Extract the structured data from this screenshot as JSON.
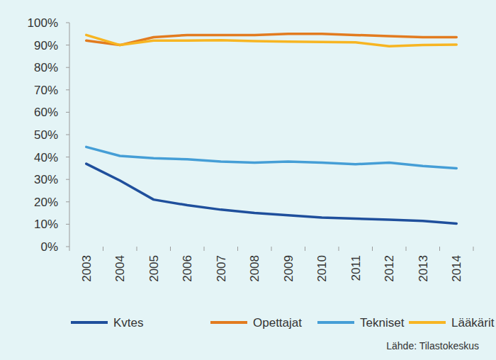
{
  "chart_data": {
    "type": "line",
    "categories": [
      "2003",
      "2004",
      "2005",
      "2006",
      "2007",
      "2008",
      "2009",
      "2010",
      "2011",
      "2012",
      "2013",
      "2014"
    ],
    "series": [
      {
        "name": "Kvtes",
        "color": "#1f4f9c",
        "values": [
          37,
          29.5,
          21,
          18.5,
          16.5,
          15,
          14,
          13,
          12.5,
          12,
          11.5,
          10.3
        ]
      },
      {
        "name": "Opettajat",
        "color": "#e27b1f",
        "values": [
          92,
          90,
          93.5,
          94.5,
          94.5,
          94.5,
          95,
          95,
          94.5,
          94,
          93.5,
          93.5
        ]
      },
      {
        "name": "Tekniset",
        "color": "#459ed6",
        "values": [
          44.5,
          40.5,
          39.5,
          39,
          38,
          37.5,
          38,
          37.5,
          36.8,
          37.5,
          36,
          35
        ]
      },
      {
        "name": "Lääkärit",
        "color": "#f7b522",
        "values": [
          94.5,
          90,
          92,
          92,
          92.2,
          91.8,
          91.5,
          91.4,
          91.2,
          89.5,
          90,
          90.2
        ]
      }
    ],
    "ylim": [
      0,
      100
    ],
    "yticks": [
      {
        "value": 0,
        "label": "0%"
      },
      {
        "value": 10,
        "label": "10%"
      },
      {
        "value": 20,
        "label": "20%"
      },
      {
        "value": 30,
        "label": "30%"
      },
      {
        "value": 40,
        "label": "40%"
      },
      {
        "value": 50,
        "label": "50%"
      },
      {
        "value": 60,
        "label": "60%"
      },
      {
        "value": 70,
        "label": "70%"
      },
      {
        "value": 80,
        "label": "80%"
      },
      {
        "value": 90,
        "label": "90%"
      },
      {
        "value": 100,
        "label": "100%"
      }
    ],
    "grid": false,
    "legend": "bottom",
    "annotations": [
      "Lähde: Tilastokeskus"
    ]
  }
}
